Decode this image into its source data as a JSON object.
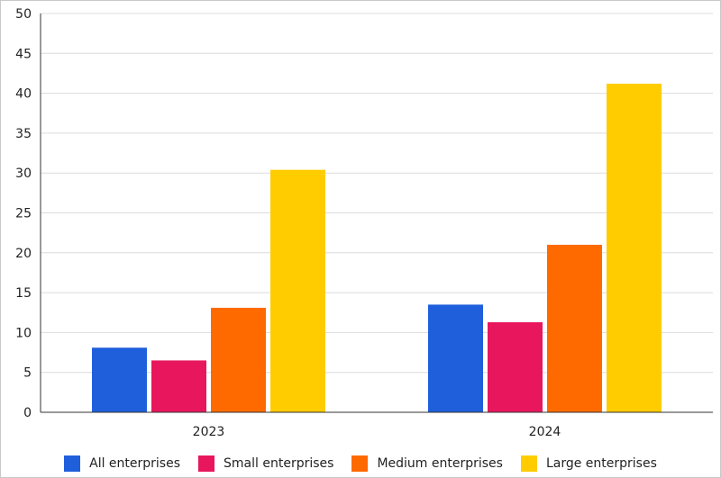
{
  "chart_data": {
    "type": "bar",
    "categories": [
      "2023",
      "2024"
    ],
    "series": [
      {
        "name": "All enterprises",
        "values": [
          8.1,
          13.5
        ],
        "color": "#1f5fdc"
      },
      {
        "name": "Small enterprises",
        "values": [
          6.5,
          11.3
        ],
        "color": "#e8175d"
      },
      {
        "name": "Medium enterprises",
        "values": [
          13.1,
          21.0
        ],
        "color": "#ff6a00"
      },
      {
        "name": "Large enterprises",
        "values": [
          30.4,
          41.2
        ],
        "color": "#ffcc00"
      }
    ],
    "title": "",
    "xlabel": "",
    "ylabel": "",
    "ylim": [
      0,
      50
    ],
    "yticks": [
      "0",
      "5",
      "10",
      "15",
      "20",
      "25",
      "30",
      "35",
      "40",
      "45",
      "50"
    ],
    "grid": true,
    "legend_position": "bottom"
  }
}
